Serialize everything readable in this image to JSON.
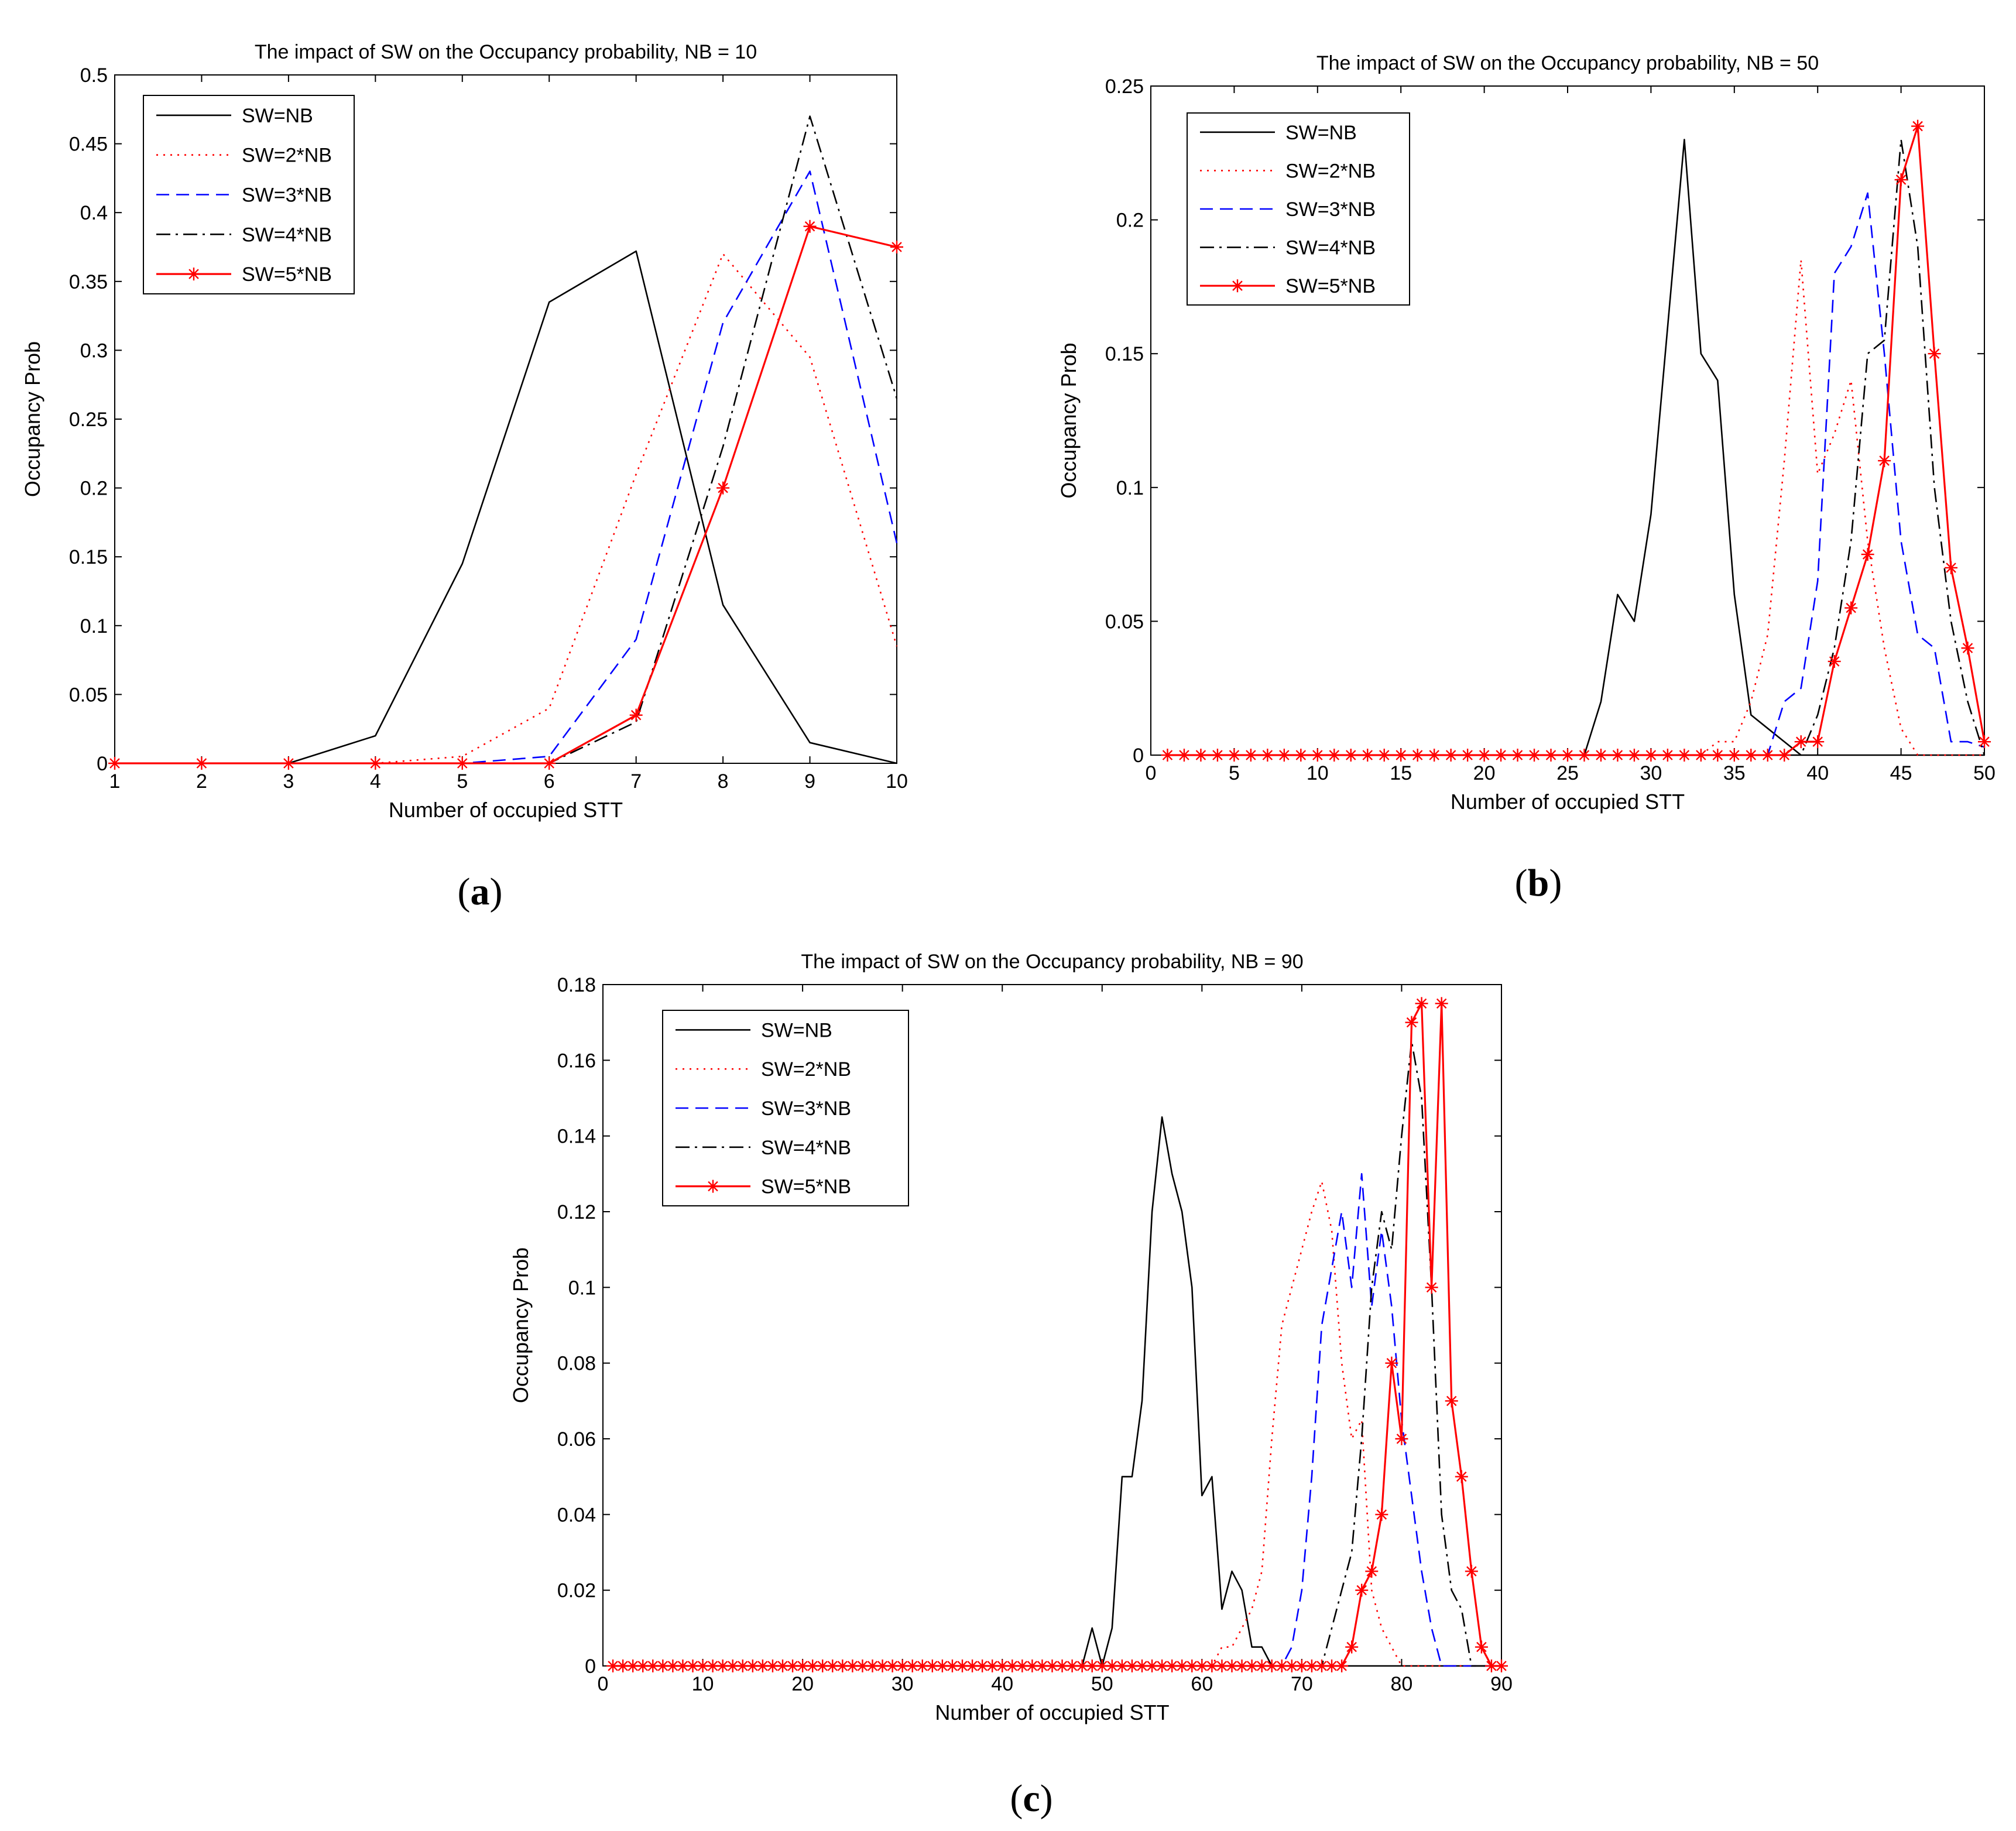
{
  "chart_data": [
    {
      "id": "a",
      "type": "line",
      "title": "The impact of SW on the Occupancy probability, NB = 10",
      "xlabel": "Number of occupied STT",
      "ylabel": "Occupancy Prob",
      "xlim": [
        1,
        10
      ],
      "ylim": [
        0,
        0.5
      ],
      "xticks": [
        1,
        2,
        3,
        4,
        5,
        6,
        7,
        8,
        9,
        10
      ],
      "yticks": [
        0,
        0.05,
        0.1,
        0.15,
        0.2,
        0.25,
        0.3,
        0.35,
        0.4,
        0.45,
        0.5
      ],
      "panel_label": "a",
      "legend_position": "top-left",
      "series": [
        {
          "name": "SW=NB",
          "style": "solid",
          "color": "#000000",
          "x": [
            1,
            2,
            3,
            4,
            5,
            6,
            7,
            8,
            9,
            10
          ],
          "y": [
            0,
            0,
            0,
            0.02,
            0.145,
            0.335,
            0.372,
            0.115,
            0.015,
            0
          ]
        },
        {
          "name": "SW=2*NB",
          "style": "dotted",
          "color": "#ff0000",
          "x": [
            1,
            2,
            3,
            4,
            5,
            6,
            7,
            8,
            9,
            10
          ],
          "y": [
            0,
            0,
            0,
            0,
            0.005,
            0.04,
            0.21,
            0.37,
            0.295,
            0.085
          ]
        },
        {
          "name": "SW=3*NB",
          "style": "dashed",
          "color": "#0000ff",
          "x": [
            1,
            2,
            3,
            4,
            5,
            6,
            7,
            8,
            9,
            10
          ],
          "y": [
            0,
            0,
            0,
            0,
            0,
            0.005,
            0.09,
            0.32,
            0.43,
            0.16
          ]
        },
        {
          "name": "SW=4*NB",
          "style": "dashdot",
          "color": "#000000",
          "x": [
            1,
            2,
            3,
            4,
            5,
            6,
            7,
            8,
            9,
            10
          ],
          "y": [
            0,
            0,
            0,
            0,
            0,
            0,
            0.03,
            0.23,
            0.47,
            0.265
          ]
        },
        {
          "name": "SW=5*NB",
          "style": "solid-star",
          "color": "#ff0000",
          "x": [
            1,
            2,
            3,
            4,
            5,
            6,
            7,
            8,
            9,
            10
          ],
          "y": [
            0,
            0,
            0,
            0,
            0,
            0,
            0.035,
            0.2,
            0.39,
            0.375
          ]
        }
      ]
    },
    {
      "id": "b",
      "type": "line",
      "title": "The impact of SW on the Occupancy probability, NB = 50",
      "xlabel": "Number of occupied STT",
      "ylabel": "Occupancy Prob",
      "xlim": [
        0,
        50
      ],
      "ylim": [
        0,
        0.25
      ],
      "xticks": [
        0,
        5,
        10,
        15,
        20,
        25,
        30,
        35,
        40,
        45,
        50
      ],
      "yticks": [
        0,
        0.05,
        0.1,
        0.15,
        0.2,
        0.25
      ],
      "panel_label": "b",
      "legend_position": "top-left",
      "series": [
        {
          "name": "SW=NB",
          "style": "solid",
          "color": "#000000",
          "x": [
            1,
            26,
            27,
            28,
            29,
            30,
            31,
            32,
            33,
            34,
            35,
            36,
            37,
            38,
            39,
            50
          ],
          "y": [
            0,
            0,
            0.02,
            0.06,
            0.05,
            0.09,
            0.16,
            0.23,
            0.15,
            0.14,
            0.06,
            0.015,
            0.01,
            0.005,
            0,
            0
          ]
        },
        {
          "name": "SW=2*NB",
          "style": "dotted",
          "color": "#ff0000",
          "x": [
            1,
            33,
            34,
            35,
            36,
            37,
            38,
            39,
            40,
            41,
            42,
            43,
            44,
            45,
            46,
            50
          ],
          "y": [
            0,
            0,
            0.005,
            0.005,
            0.02,
            0.045,
            0.11,
            0.185,
            0.105,
            0.12,
            0.14,
            0.08,
            0.04,
            0.01,
            0,
            0
          ]
        },
        {
          "name": "SW=3*NB",
          "style": "dashed",
          "color": "#0000ff",
          "x": [
            1,
            37,
            38,
            39,
            40,
            41,
            42,
            43,
            44,
            45,
            46,
            47,
            48,
            49,
            50
          ],
          "y": [
            0,
            0,
            0.02,
            0.025,
            0.065,
            0.18,
            0.19,
            0.21,
            0.15,
            0.08,
            0.045,
            0.04,
            0.005,
            0.005,
            0.003
          ]
        },
        {
          "name": "SW=4*NB",
          "style": "dashdot",
          "color": "#000000",
          "x": [
            1,
            39,
            40,
            41,
            42,
            43,
            44,
            45,
            46,
            47,
            48,
            49,
            50
          ],
          "y": [
            0,
            0,
            0.015,
            0.04,
            0.08,
            0.15,
            0.155,
            0.23,
            0.19,
            0.1,
            0.05,
            0.02,
            0
          ]
        },
        {
          "name": "SW=5*NB",
          "style": "solid-star",
          "color": "#ff0000",
          "x": [
            1,
            2,
            3,
            4,
            5,
            6,
            7,
            8,
            9,
            10,
            11,
            12,
            13,
            14,
            15,
            16,
            17,
            18,
            19,
            20,
            21,
            22,
            23,
            24,
            25,
            26,
            27,
            28,
            29,
            30,
            31,
            32,
            33,
            34,
            35,
            36,
            37,
            38,
            39,
            40,
            41,
            42,
            43,
            44,
            45,
            46,
            47,
            48,
            49,
            50
          ],
          "y": [
            0,
            0,
            0,
            0,
            0,
            0,
            0,
            0,
            0,
            0,
            0,
            0,
            0,
            0,
            0,
            0,
            0,
            0,
            0,
            0,
            0,
            0,
            0,
            0,
            0,
            0,
            0,
            0,
            0,
            0,
            0,
            0,
            0,
            0,
            0,
            0,
            0,
            0,
            0.005,
            0.005,
            0.035,
            0.055,
            0.075,
            0.11,
            0.215,
            0.235,
            0.15,
            0.07,
            0.04,
            0.005
          ]
        }
      ]
    },
    {
      "id": "c",
      "type": "line",
      "title": "The impact of SW on the Occupancy probability, NB = 90",
      "xlabel": "Number of occupied STT",
      "ylabel": "Occupancy Prob",
      "xlim": [
        0,
        90
      ],
      "ylim": [
        0,
        0.18
      ],
      "xticks": [
        0,
        10,
        20,
        30,
        40,
        50,
        60,
        70,
        80,
        90
      ],
      "yticks": [
        0,
        0.02,
        0.04,
        0.06,
        0.08,
        0.1,
        0.12,
        0.14,
        0.16,
        0.18
      ],
      "panel_label": "c",
      "legend_position": "top-left",
      "series": [
        {
          "name": "SW=NB",
          "style": "solid",
          "color": "#000000",
          "x": [
            1,
            48,
            49,
            50,
            51,
            52,
            53,
            54,
            55,
            56,
            57,
            58,
            59,
            60,
            61,
            62,
            63,
            64,
            65,
            66,
            67,
            68,
            90
          ],
          "y": [
            0,
            0,
            0.01,
            0,
            0.01,
            0.05,
            0.05,
            0.07,
            0.12,
            0.145,
            0.13,
            0.12,
            0.1,
            0.045,
            0.05,
            0.015,
            0.025,
            0.02,
            0.005,
            0.005,
            0,
            0,
            0
          ]
        },
        {
          "name": "SW=2*NB",
          "style": "dotted",
          "color": "#ff0000",
          "x": [
            1,
            61,
            62,
            63,
            64,
            65,
            66,
            67,
            68,
            69,
            70,
            71,
            72,
            73,
            74,
            75,
            76,
            77,
            78,
            79,
            80,
            90
          ],
          "y": [
            0,
            0,
            0.005,
            0.005,
            0.01,
            0.015,
            0.025,
            0.06,
            0.09,
            0.1,
            0.11,
            0.12,
            0.128,
            0.115,
            0.08,
            0.06,
            0.065,
            0.02,
            0.01,
            0.005,
            0,
            0
          ]
        },
        {
          "name": "SW=3*NB",
          "style": "dashed",
          "color": "#0000ff",
          "x": [
            1,
            68,
            69,
            70,
            71,
            72,
            73,
            74,
            75,
            76,
            77,
            78,
            79,
            80,
            81,
            82,
            83,
            84,
            90
          ],
          "y": [
            0,
            0,
            0.005,
            0.02,
            0.05,
            0.09,
            0.105,
            0.12,
            0.1,
            0.13,
            0.095,
            0.115,
            0.095,
            0.065,
            0.045,
            0.025,
            0.01,
            0,
            0
          ]
        },
        {
          "name": "SW=4*NB",
          "style": "dashdot",
          "color": "#000000",
          "x": [
            1,
            72,
            73,
            74,
            75,
            76,
            77,
            78,
            79,
            80,
            81,
            82,
            83,
            84,
            85,
            86,
            87,
            90
          ],
          "y": [
            0,
            0,
            0.01,
            0.02,
            0.03,
            0.06,
            0.1,
            0.12,
            0.11,
            0.14,
            0.165,
            0.15,
            0.1,
            0.04,
            0.02,
            0.015,
            0,
            0
          ]
        },
        {
          "name": "SW=5*NB",
          "style": "solid-star",
          "color": "#ff0000",
          "x": [
            1,
            2,
            3,
            4,
            5,
            6,
            7,
            8,
            9,
            10,
            11,
            12,
            13,
            14,
            15,
            16,
            17,
            18,
            19,
            20,
            21,
            22,
            23,
            24,
            25,
            26,
            27,
            28,
            29,
            30,
            31,
            32,
            33,
            34,
            35,
            36,
            37,
            38,
            39,
            40,
            41,
            42,
            43,
            44,
            45,
            46,
            47,
            48,
            49,
            50,
            51,
            52,
            53,
            54,
            55,
            56,
            57,
            58,
            59,
            60,
            61,
            62,
            63,
            64,
            65,
            66,
            67,
            68,
            69,
            70,
            71,
            72,
            73,
            74,
            75,
            76,
            77,
            78,
            79,
            80,
            81,
            82,
            83,
            84,
            85,
            86,
            87,
            88,
            89,
            90
          ],
          "y": [
            0,
            0,
            0,
            0,
            0,
            0,
            0,
            0,
            0,
            0,
            0,
            0,
            0,
            0,
            0,
            0,
            0,
            0,
            0,
            0,
            0,
            0,
            0,
            0,
            0,
            0,
            0,
            0,
            0,
            0,
            0,
            0,
            0,
            0,
            0,
            0,
            0,
            0,
            0,
            0,
            0,
            0,
            0,
            0,
            0,
            0,
            0,
            0,
            0,
            0,
            0,
            0,
            0,
            0,
            0,
            0,
            0,
            0,
            0,
            0,
            0,
            0,
            0,
            0,
            0,
            0,
            0,
            0,
            0,
            0,
            0,
            0,
            0,
            0,
            0.005,
            0.02,
            0.025,
            0.04,
            0.08,
            0.06,
            0.17,
            0.175,
            0.1,
            0.175,
            0.07,
            0.05,
            0.025,
            0.005,
            0,
            0
          ]
        }
      ]
    }
  ]
}
